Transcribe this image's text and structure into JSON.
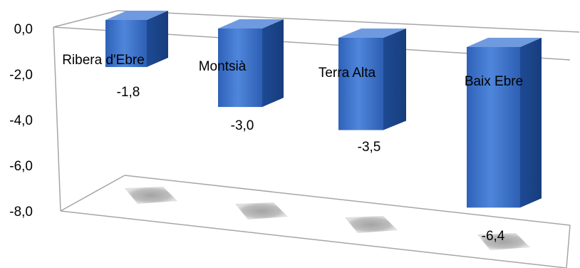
{
  "chart_data": {
    "type": "bar",
    "style": "3d-column",
    "categories": [
      "Ribera d'Ebre",
      "Montsià",
      "Terra Alta",
      "Baix Ebre"
    ],
    "values": [
      -1.8,
      -3.0,
      -3.5,
      -6.4
    ],
    "value_labels": [
      "-1,8",
      "-3,0",
      "-3,5",
      "-6,4"
    ],
    "y_ticks": [
      "0,0",
      "-2,0",
      "-4,0",
      "-6,0",
      "-8,0"
    ],
    "ylim": [
      -8,
      0
    ],
    "grid": false,
    "legend": "none",
    "colors": {
      "bar_front": "#3d6fc4",
      "bar_side": "#1f4d9b",
      "bar_top": "#6f9ae0",
      "axis": "#a6a6a6"
    }
  }
}
